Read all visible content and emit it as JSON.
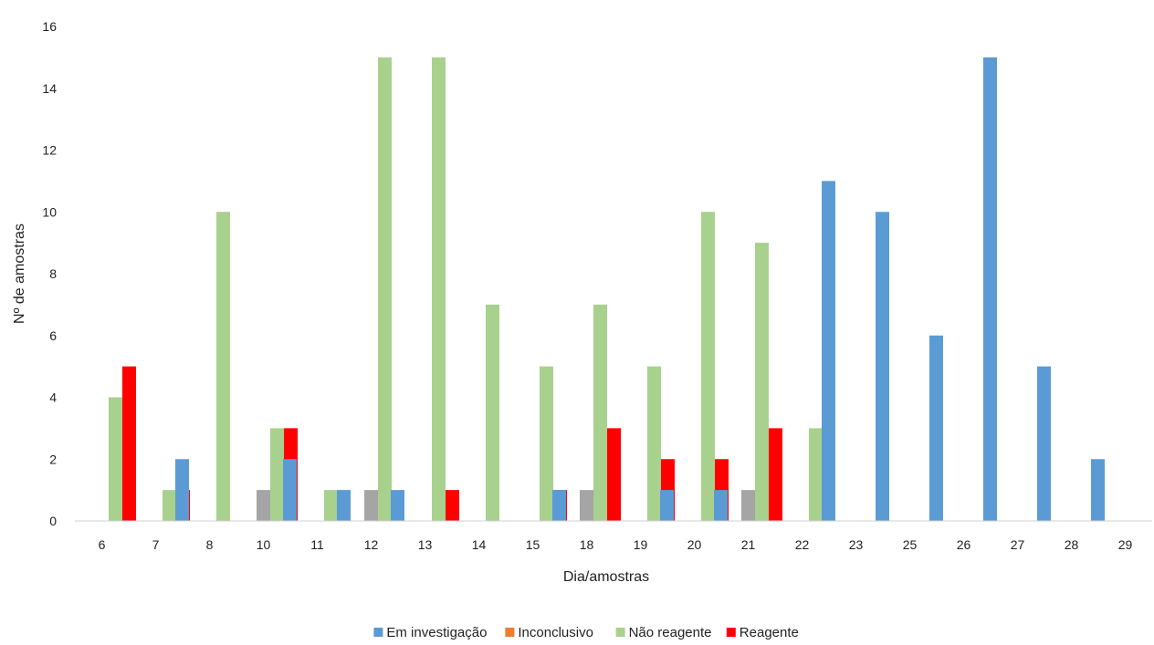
{
  "chart_data": {
    "type": "bar",
    "title": "",
    "xlabel": "Dia/amostras",
    "ylabel": "Nº de amostras",
    "ylim": [
      0,
      16
    ],
    "yticks": [
      0,
      2,
      4,
      6,
      8,
      10,
      12,
      14,
      16
    ],
    "grid": false,
    "legend_position": "bottom",
    "categories": [
      "6",
      "7",
      "8",
      "10",
      "11",
      "12",
      "13",
      "14",
      "15",
      "18",
      "19",
      "20",
      "21",
      "22",
      "23",
      "25",
      "26",
      "27",
      "28",
      "29"
    ],
    "series": [
      {
        "name": "Em investigação",
        "color": "#5B9BD5",
        "values": [
          0,
          0,
          2,
          0,
          2,
          1,
          1,
          0,
          0,
          1,
          0,
          1,
          1,
          0,
          11,
          10,
          6,
          15,
          5,
          2
        ]
      },
      {
        "name": "Inconclusivo",
        "color": "#ED7D31",
        "values": [
          0,
          0,
          0,
          0,
          0,
          0,
          0,
          0,
          0,
          0,
          0,
          0,
          0,
          0,
          0,
          0,
          0,
          0,
          0,
          0
        ]
      },
      {
        "name": "",
        "color": "#A5A5A5",
        "show_in_legend": false,
        "values": [
          0,
          0,
          0,
          1,
          0,
          1,
          0,
          0,
          0,
          1,
          0,
          0,
          1,
          0,
          0,
          0,
          0,
          0,
          0,
          0
        ]
      },
      {
        "name": "Não reagente",
        "color": "#A9D18E",
        "values": [
          4,
          1,
          10,
          3,
          1,
          15,
          15,
          7,
          5,
          7,
          5,
          10,
          9,
          3,
          0,
          0,
          0,
          0,
          0,
          0
        ]
      },
      {
        "name": "Reagente",
        "color": "#FF0000",
        "values": [
          5,
          1,
          0,
          3,
          0,
          0,
          1,
          0,
          1,
          3,
          2,
          2,
          3,
          0,
          0,
          0,
          0,
          0,
          0,
          0
        ]
      }
    ]
  }
}
